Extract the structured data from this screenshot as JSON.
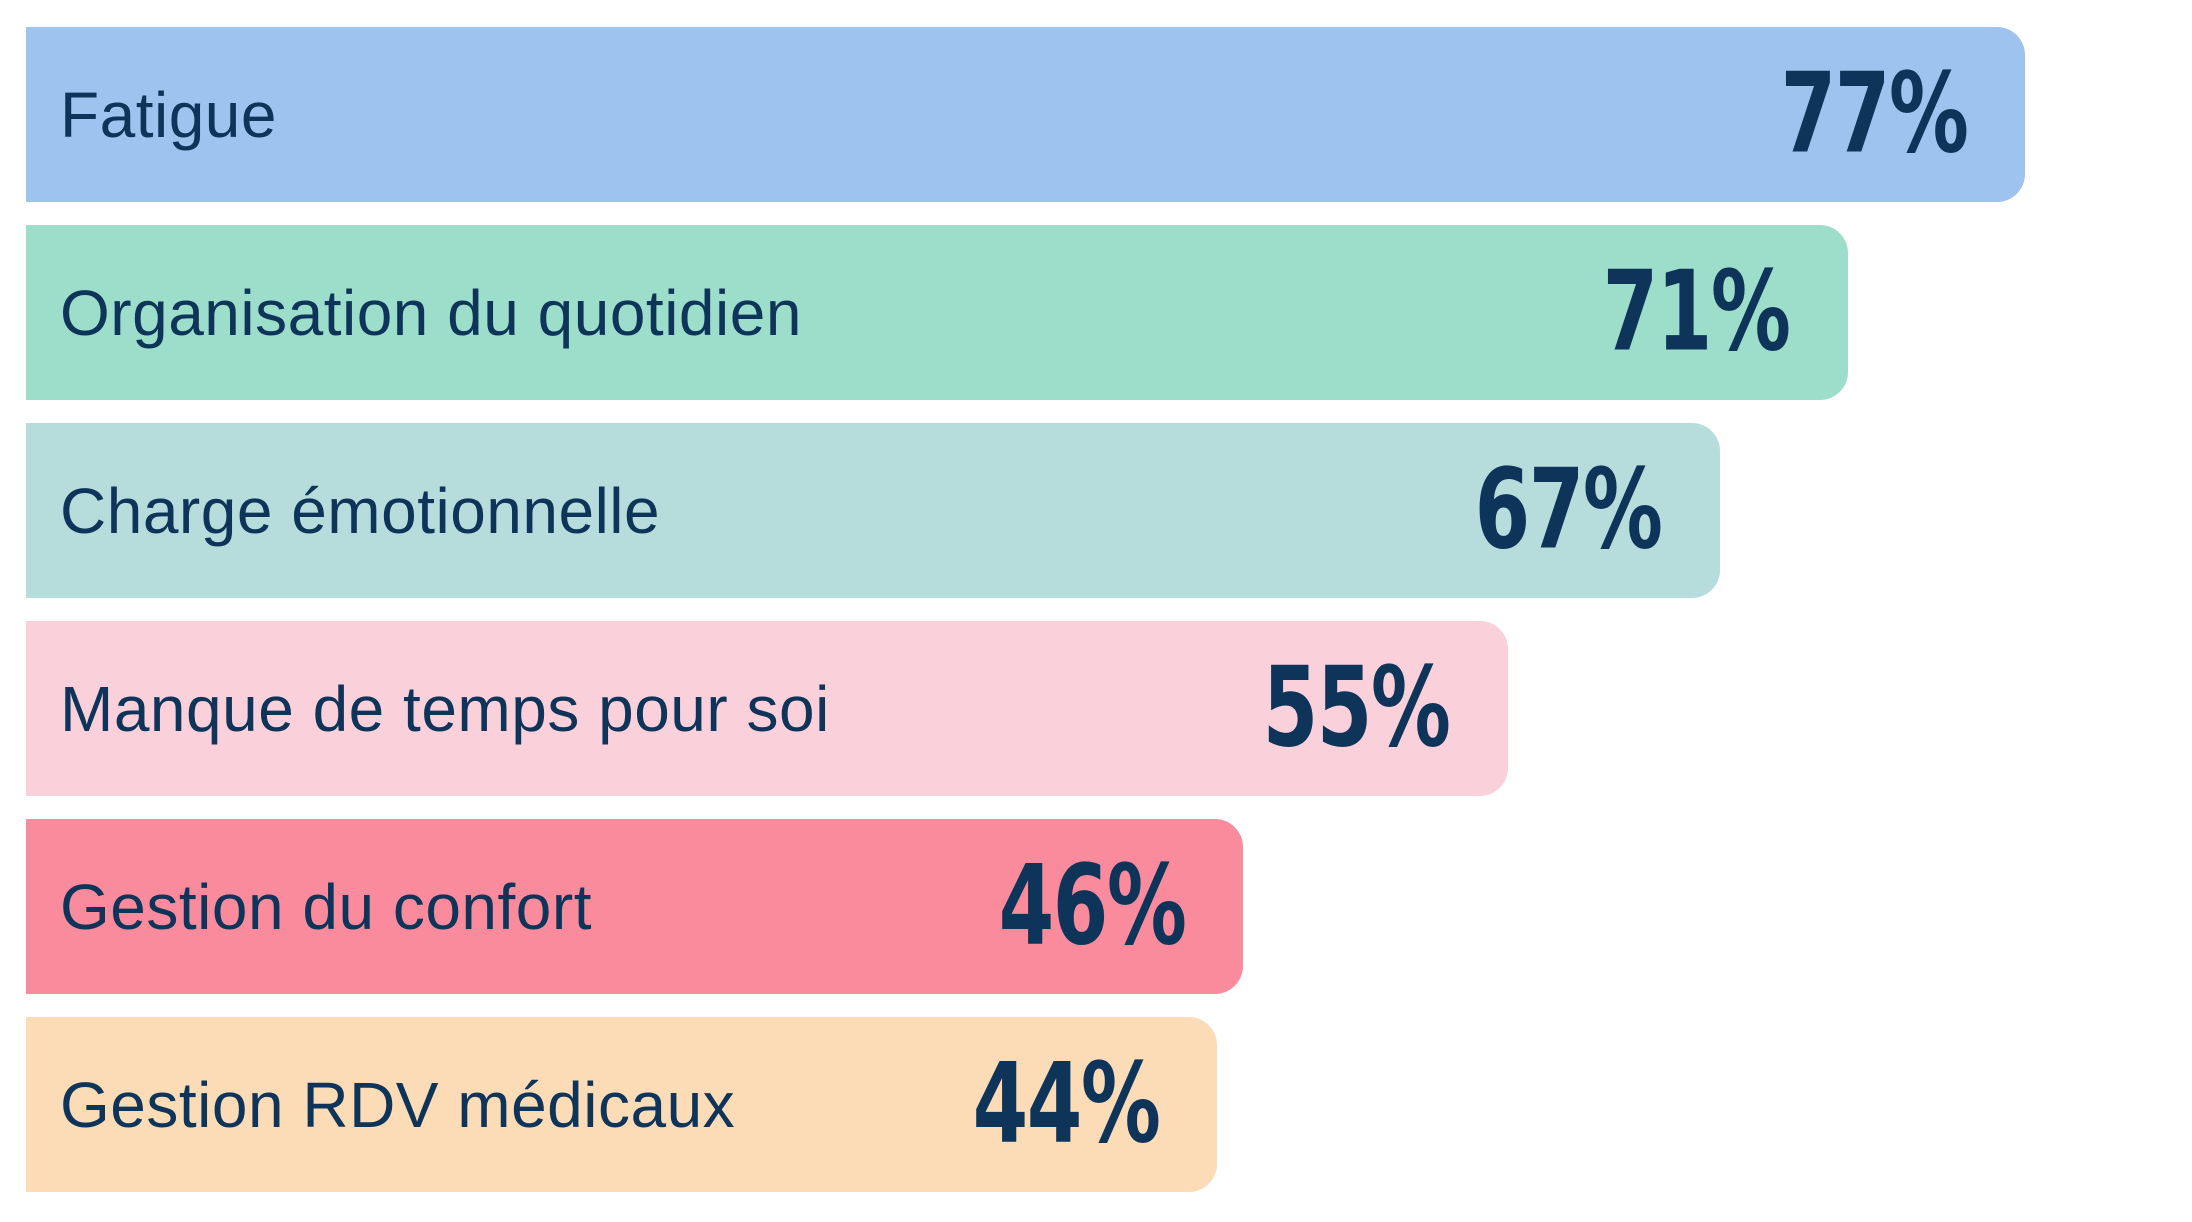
{
  "chart_data": {
    "type": "bar",
    "orientation": "horizontal",
    "title": "",
    "xlabel": "",
    "ylabel": "",
    "xlim": [
      0,
      100
    ],
    "grid": false,
    "legend": false,
    "background_color": "#FFFFFF",
    "text_color": "#0E3459",
    "categories": [
      "Fatigue",
      "Organisation du quotidien",
      "Charge émotionnelle",
      "Manque de temps pour soi",
      "Gestion du confort",
      "Gestion RDV médicaux"
    ],
    "values": [
      77,
      71,
      67,
      55,
      46,
      44
    ],
    "value_labels": [
      "77%",
      "71%",
      "67%",
      "55%",
      "46%",
      "44%"
    ],
    "bar_colors": [
      "#9DC3EE",
      "#9CDEC9",
      "#B6DDDC",
      "#FAD1DB",
      "#F98B9D",
      "#FBDCB7"
    ],
    "bar_width_pct": [
      92.3,
      84.1,
      78.2,
      68.4,
      56.2,
      55.0
    ]
  }
}
